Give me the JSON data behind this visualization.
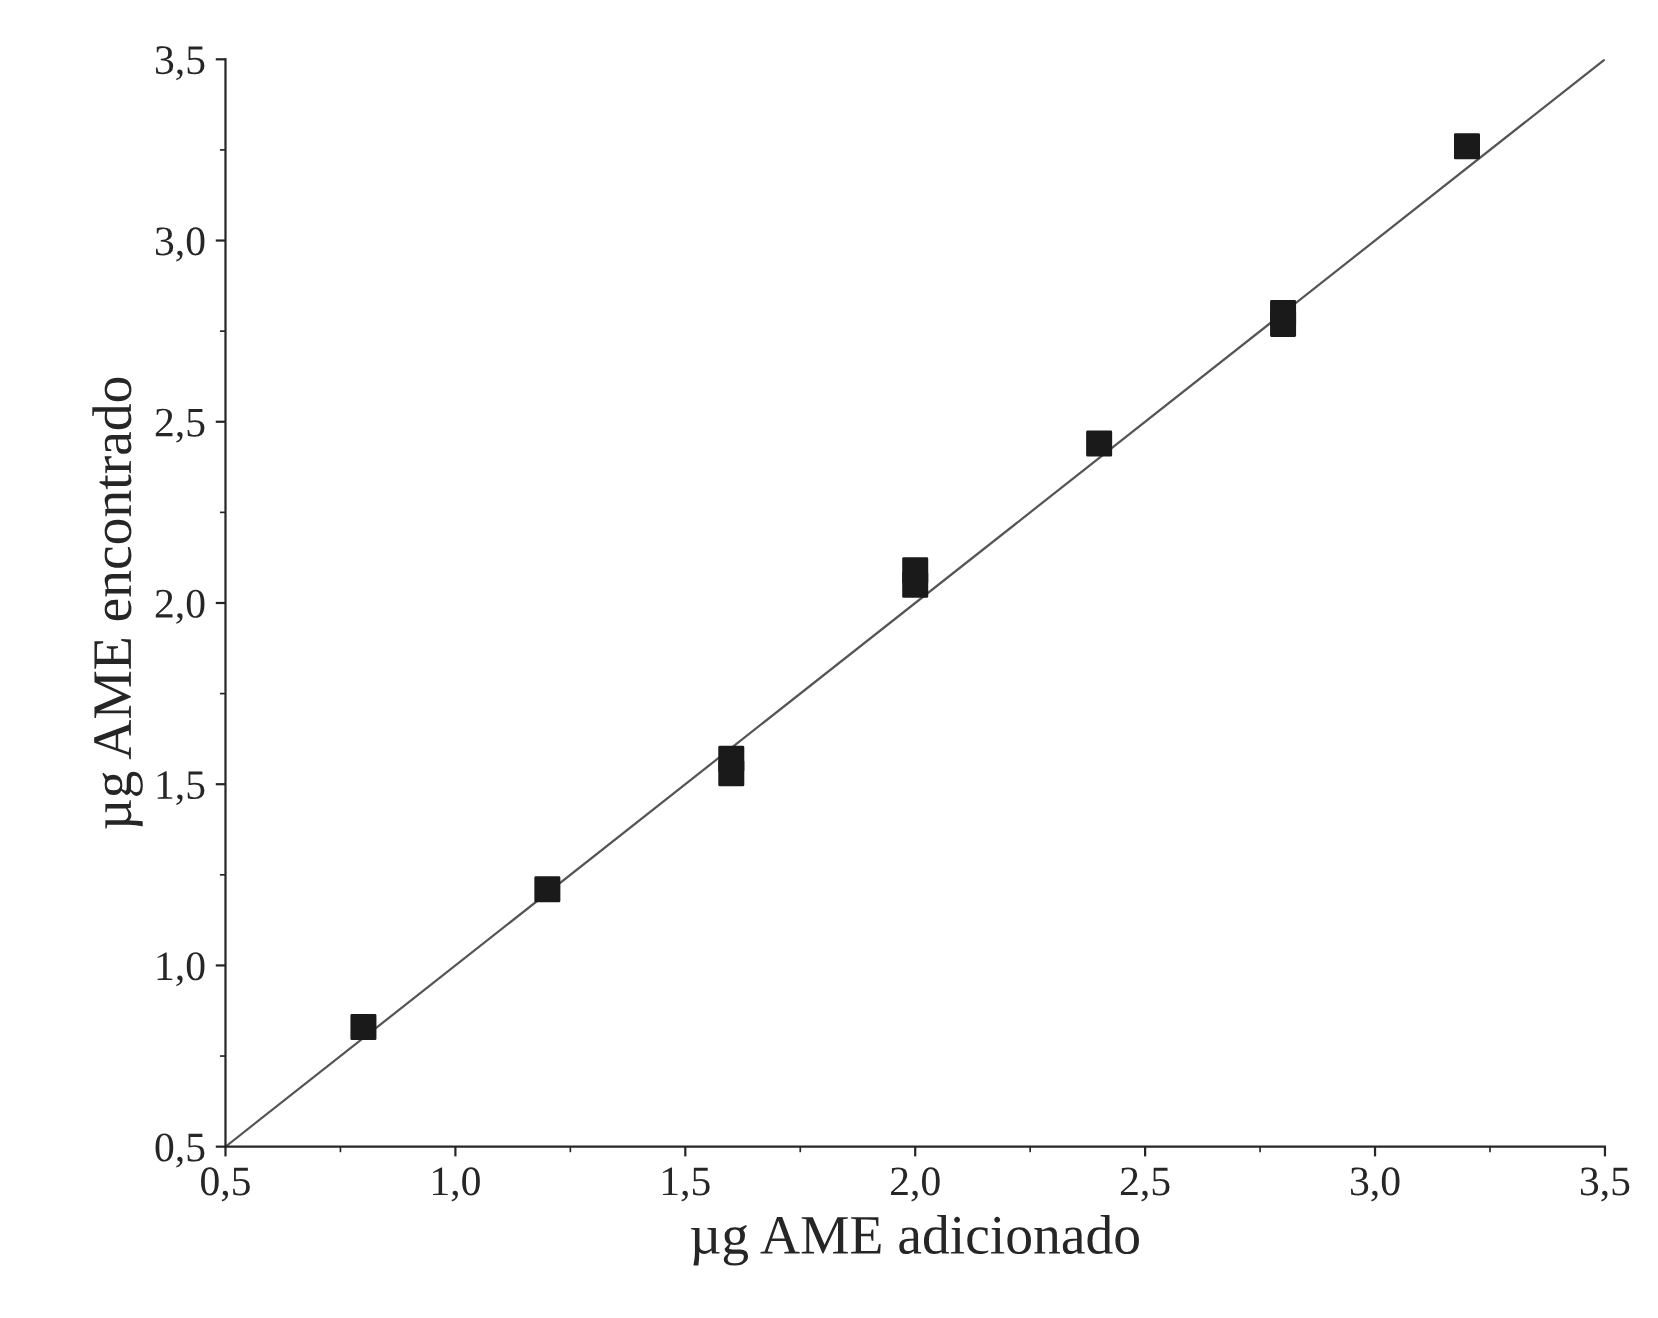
{
  "chart_data": {
    "type": "scatter",
    "xlabel": "µg AME adicionado",
    "ylabel": "µg AME encontrado",
    "series": [
      {
        "color": "#1a1a1a",
        "marker": "square",
        "x": [
          0.8,
          1.2,
          1.6,
          1.6,
          2.0,
          2.0,
          2.4,
          2.8,
          2.8,
          3.2
        ],
        "values": [
          0.83,
          1.21,
          1.57,
          1.53,
          2.09,
          2.05,
          2.44,
          2.8,
          2.77,
          3.26
        ]
      },
      {
        "type": "line",
        "color": "#555555",
        "line_style": "solid",
        "x": [
          0.5,
          3.5
        ],
        "values": [
          0.5,
          3.5
        ]
      }
    ],
    "xlim": [
      0.5,
      3.5
    ],
    "ylim": [
      0.5,
      3.5
    ],
    "xticks": [
      {
        "value": 0.5,
        "label": "0,5"
      },
      {
        "value": 1.0,
        "label": "1,0"
      },
      {
        "value": 1.5,
        "label": "1,5"
      },
      {
        "value": 2.0,
        "label": "2,0"
      },
      {
        "value": 2.5,
        "label": "2,5"
      },
      {
        "value": 3.0,
        "label": "3,0"
      },
      {
        "value": 3.5,
        "label": "3,5"
      }
    ],
    "yticks": [
      {
        "value": 0.5,
        "label": "0,5"
      },
      {
        "value": 1.0,
        "label": "1,0"
      },
      {
        "value": 1.5,
        "label": "1,5"
      },
      {
        "value": 2.0,
        "label": "2,0"
      },
      {
        "value": 2.5,
        "label": "2,5"
      },
      {
        "value": 3.0,
        "label": "3,0"
      },
      {
        "value": 3.5,
        "label": "3,5"
      }
    ],
    "grid": false
  }
}
